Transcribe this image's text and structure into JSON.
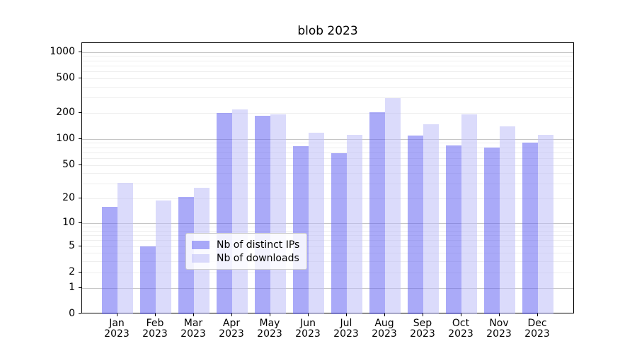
{
  "chart_data": {
    "type": "bar",
    "title": "blob 2023",
    "categories": [
      "Jan 2023",
      "Feb 2023",
      "Mar 2023",
      "Apr 2023",
      "May 2023",
      "Jun 2023",
      "Jul 2023",
      "Aug 2023",
      "Sep 2023",
      "Oct 2023",
      "Nov 2023",
      "Dec 2023"
    ],
    "series": [
      {
        "name": "Nb of distinct IPs",
        "color": "#6464f3",
        "fill": "#6464f38c",
        "values": [
          16,
          5,
          21,
          201,
          185,
          82,
          69,
          202,
          110,
          84,
          80,
          91
        ]
      },
      {
        "name": "Nb of downloads",
        "color": "#bdbdf8",
        "fill": "#bdbdf88c",
        "values": [
          31,
          19,
          27,
          219,
          192,
          118,
          111,
          293,
          147,
          191,
          140,
          111
        ]
      }
    ],
    "y_scale": "log1p",
    "y_ticks": [
      0,
      1,
      2,
      5,
      10,
      20,
      50,
      100,
      200,
      500,
      1000
    ],
    "ylim": [
      0,
      1260
    ],
    "xlabel": "",
    "ylabel": "",
    "grid": {
      "on": true,
      "minor_color": "#eeeeee",
      "major_color": "#c5c5c5"
    },
    "legend": {
      "position": "lower center",
      "border_color": "#cccccc"
    }
  }
}
